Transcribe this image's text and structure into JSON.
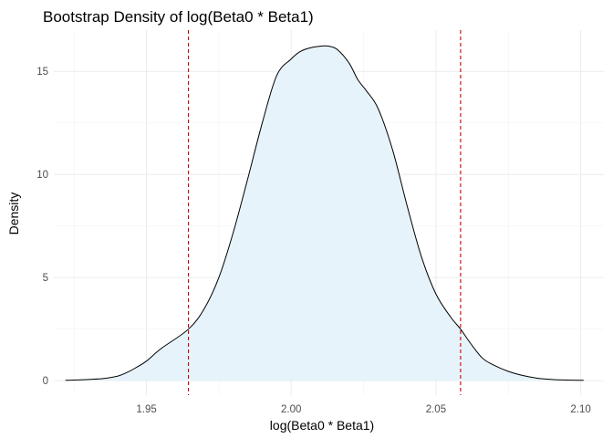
{
  "chart_data": {
    "type": "area",
    "title": "Bootstrap Density of log(Beta0 * Beta1)",
    "xlabel": "log(Beta0 * Beta1)",
    "ylabel": "Density",
    "xlim": [
      1.918,
      2.108
    ],
    "ylim": [
      -0.7,
      17.0
    ],
    "x_ticks": [
      1.95,
      2.0,
      2.05,
      2.1
    ],
    "x_tick_labels": [
      "1.95",
      "2.00",
      "2.05",
      "2.10"
    ],
    "y_ticks": [
      0,
      5,
      10,
      15
    ],
    "y_tick_labels": [
      "0",
      "5",
      "10",
      "15"
    ],
    "grid": true,
    "legend": "none",
    "fill_color": "#e6f3fa",
    "line_color": "#000000",
    "reference_line_color": "#cc0000",
    "reference_lines": [
      1.9645,
      2.0585
    ],
    "series": [
      {
        "x": [
          1.922,
          1.925,
          1.93,
          1.935,
          1.94,
          1.943,
          1.946,
          1.95,
          1.955,
          1.9645,
          1.97,
          1.975,
          1.98,
          1.985,
          1.99,
          1.995,
          2.0,
          2.003,
          2.006,
          2.01,
          2.013,
          2.016,
          2.02,
          2.023,
          2.026,
          2.03,
          2.035,
          2.04,
          2.045,
          2.05,
          2.055,
          2.0585,
          2.062,
          2.066,
          2.07,
          2.075,
          2.08,
          2.085,
          2.09,
          2.095,
          2.101
        ],
        "y": [
          0.02,
          0.03,
          0.06,
          0.1,
          0.22,
          0.38,
          0.6,
          0.95,
          1.55,
          2.5,
          3.5,
          5.0,
          7.2,
          9.8,
          12.5,
          14.8,
          15.6,
          15.95,
          16.12,
          16.22,
          16.22,
          16.05,
          15.4,
          14.6,
          14.05,
          13.2,
          11.2,
          8.5,
          6.0,
          4.2,
          3.1,
          2.5,
          1.8,
          1.1,
          0.75,
          0.45,
          0.25,
          0.12,
          0.06,
          0.03,
          0.02
        ]
      }
    ]
  }
}
